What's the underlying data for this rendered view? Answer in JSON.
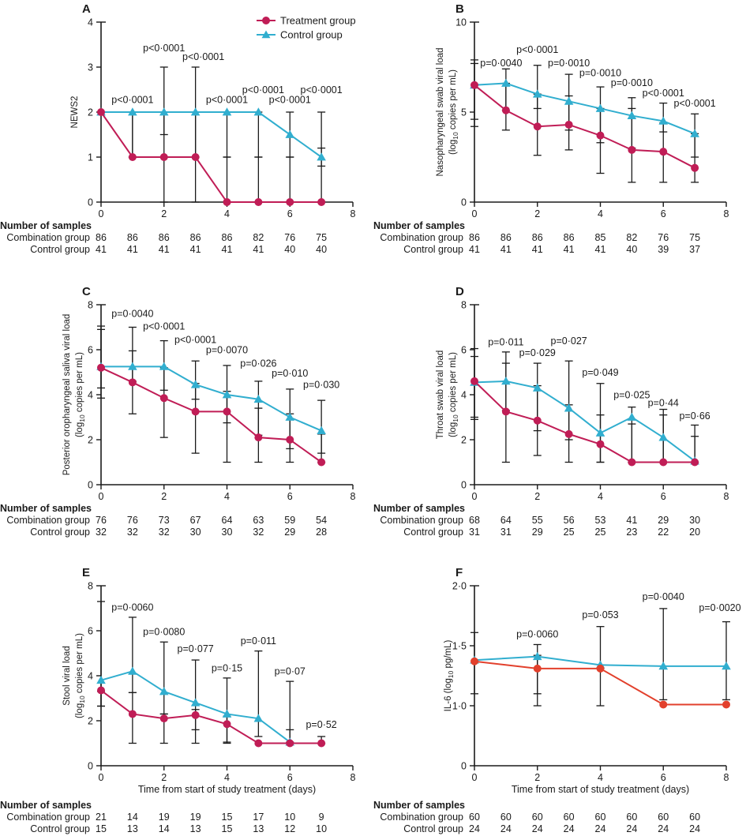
{
  "figure": {
    "legend": {
      "treatment_label": "Treatment group",
      "control_label": "Control group"
    },
    "x_axis_title": "Time from start of study treatment (days)",
    "samples_header": "Number of samples",
    "combination_row_label": "Combination group",
    "control_row_label": "Control group",
    "colors": {
      "treatment": "#C01D56",
      "control": "#31AECF",
      "treatment_f": "#E2402C",
      "error": "#1a1a1a",
      "text": "#1a1a1a"
    },
    "x_ticks": [
      "0",
      "2",
      "4",
      "6",
      "8"
    ],
    "x_tick_values": [
      0,
      2,
      4,
      6,
      8
    ],
    "x_max": 8
  },
  "chart_data": [
    {
      "type": "line",
      "panel_label": "A",
      "ylabel_lines": [
        "NEWS2"
      ],
      "ytick_labels": [
        "0",
        "1",
        "2",
        "3",
        "4"
      ],
      "ytick_values": [
        0,
        1,
        2,
        3,
        4
      ],
      "ylim": [
        0,
        4
      ],
      "x": [
        0,
        1,
        2,
        3,
        4,
        5,
        6,
        7
      ],
      "series": [
        {
          "name": "Treatment group",
          "values": [
            2,
            1,
            1,
            1,
            0,
            0,
            0,
            0
          ],
          "err": [
            null,
            [
              1,
              2
            ],
            [
              0,
              2
            ],
            [
              0,
              2
            ],
            [
              0,
              1
            ],
            [
              0,
              1
            ],
            [
              0,
              1
            ],
            [
              0,
              1.2
            ]
          ]
        },
        {
          "name": "Control group",
          "values": [
            2,
            2,
            2,
            2,
            2,
            2,
            1.5,
            1
          ],
          "err": [
            null,
            [
              1,
              2
            ],
            [
              1.5,
              3
            ],
            [
              1,
              3
            ],
            [
              1,
              2
            ],
            [
              1,
              2
            ],
            [
              1,
              2
            ],
            [
              0.8,
              2
            ]
          ]
        }
      ],
      "pvalues": [
        {
          "x": 1,
          "y": 2.2,
          "t": "p<0·0001"
        },
        {
          "x": 2,
          "y": 3.35,
          "t": "p<0·0001"
        },
        {
          "x": 3,
          "y": 3.16,
          "t": "p<0·0001",
          "dx": 10
        },
        {
          "x": 4,
          "y": 2.2,
          "t": "p<0·0001"
        },
        {
          "x": 5,
          "y": 2.42,
          "t": "p<0·0001",
          "dx": 6
        },
        {
          "x": 6,
          "y": 2.2,
          "t": "p<0·0001"
        },
        {
          "x": 7,
          "y": 2.42,
          "t": "p<0·0001"
        }
      ],
      "samples": {
        "combination": [
          "86",
          "86",
          "86",
          "86",
          "86",
          "82",
          "76",
          "75"
        ],
        "control": [
          "41",
          "41",
          "41",
          "41",
          "41",
          "41",
          "40",
          "40"
        ]
      },
      "legend": true,
      "show_x_title": false
    },
    {
      "type": "line",
      "panel_label": "B",
      "ylabel_lines": [
        "Nasopharyngeal swab viral load",
        "(log10 copies per mL)"
      ],
      "ytick_labels": [
        "0",
        "5",
        "10"
      ],
      "ytick_values": [
        0,
        5,
        10
      ],
      "ylim": [
        0,
        10
      ],
      "x": [
        0,
        1,
        2,
        3,
        4,
        5,
        6,
        7
      ],
      "series": [
        {
          "name": "Treatment group",
          "values": [
            6.5,
            5.1,
            4.2,
            4.3,
            3.7,
            2.9,
            2.8,
            1.9
          ],
          "err": [
            [
              4.2,
              7.7
            ],
            [
              4.0,
              6.6
            ],
            [
              2.6,
              6.0
            ],
            [
              2.9,
              5.9
            ],
            [
              1.6,
              5.2
            ],
            [
              1.1,
              5.2
            ],
            [
              1.1,
              4.4
            ],
            [
              1.1,
              3.8
            ]
          ]
        },
        {
          "name": "Control group",
          "values": [
            6.5,
            6.6,
            6.0,
            5.6,
            5.2,
            4.8,
            4.5,
            3.8
          ],
          "err": [
            [
              4.6,
              7.9
            ],
            [
              5.1,
              7.4
            ],
            [
              5.2,
              7.6
            ],
            [
              4.0,
              7.1
            ],
            [
              3.3,
              6.4
            ],
            [
              3.0,
              5.8
            ],
            [
              3.9,
              5.5
            ],
            [
              2.5,
              4.9
            ]
          ]
        }
      ],
      "pvalues": [
        {
          "x": 1,
          "y": 7.55,
          "t": "p=0·0040",
          "dx": -6
        },
        {
          "x": 2,
          "y": 8.3,
          "t": "p<0·0001"
        },
        {
          "x": 3,
          "y": 7.55,
          "t": "p=0·0010"
        },
        {
          "x": 4,
          "y": 7.0,
          "t": "p=0·0010"
        },
        {
          "x": 5,
          "y": 6.45,
          "t": "p=0·0010"
        },
        {
          "x": 6,
          "y": 5.88,
          "t": "p<0·0001"
        },
        {
          "x": 7,
          "y": 5.3,
          "t": "p<0·0001"
        }
      ],
      "samples": {
        "combination": [
          "86",
          "86",
          "86",
          "86",
          "85",
          "82",
          "76",
          "75"
        ],
        "control": [
          "41",
          "41",
          "41",
          "41",
          "41",
          "40",
          "39",
          "37"
        ]
      },
      "legend": false,
      "show_x_title": false
    },
    {
      "type": "line",
      "panel_label": "C",
      "ylabel_lines": [
        "Posterior oropharyngeal saliva viral load",
        "(log10 copies per mL)"
      ],
      "ytick_labels": [
        "0",
        "2",
        "4",
        "6",
        "8"
      ],
      "ytick_values": [
        0,
        2,
        4,
        6,
        8
      ],
      "ylim": [
        0,
        8
      ],
      "x": [
        0,
        1,
        2,
        3,
        4,
        5,
        6,
        7
      ],
      "series": [
        {
          "name": "Treatment group",
          "values": [
            5.2,
            4.55,
            3.85,
            3.25,
            3.25,
            2.1,
            2.0,
            1.0
          ],
          "err": [
            [
              3.85,
              6.9
            ],
            [
              3.15,
              5.95
            ],
            [
              2.1,
              5.2
            ],
            [
              1.4,
              4.5
            ],
            [
              1.0,
              4.15
            ],
            [
              1.0,
              3.4
            ],
            [
              1.0,
              3.15
            ],
            [
              1.0,
              2.25
            ]
          ]
        },
        {
          "name": "Control group",
          "values": [
            5.25,
            5.25,
            5.25,
            4.45,
            4.0,
            3.8,
            3.0,
            2.4
          ],
          "err": [
            [
              4.3,
              7.05
            ],
            [
              4.6,
              7.0
            ],
            [
              4.2,
              6.4
            ],
            [
              3.8,
              5.5
            ],
            [
              2.75,
              5.3
            ],
            [
              2.2,
              4.6
            ],
            [
              1.6,
              4.25
            ],
            [
              1.4,
              3.75
            ]
          ]
        }
      ],
      "pvalues": [
        {
          "x": 1,
          "y": 7.45,
          "t": "p=0·0040"
        },
        {
          "x": 2,
          "y": 6.9,
          "t": "p<0·0001"
        },
        {
          "x": 3,
          "y": 6.3,
          "t": "p<0·0001"
        },
        {
          "x": 4,
          "y": 5.85,
          "t": "p=0·0070"
        },
        {
          "x": 5,
          "y": 5.25,
          "t": "p=0·026"
        },
        {
          "x": 6,
          "y": 4.8,
          "t": "p=0·010"
        },
        {
          "x": 7,
          "y": 4.3,
          "t": "p=0·030"
        }
      ],
      "samples": {
        "combination": [
          "76",
          "76",
          "73",
          "67",
          "64",
          "63",
          "59",
          "54"
        ],
        "control": [
          "32",
          "32",
          "32",
          "30",
          "30",
          "32",
          "29",
          "28"
        ]
      },
      "legend": false,
      "show_x_title": false
    },
    {
      "type": "line",
      "panel_label": "D",
      "ylabel_lines": [
        "Throat swab viral load",
        "(log10 copies per mL)"
      ],
      "ytick_labels": [
        "0",
        "2",
        "4",
        "6",
        "8"
      ],
      "ytick_values": [
        0,
        2,
        4,
        6,
        8
      ],
      "ylim": [
        0,
        8
      ],
      "x": [
        0,
        1,
        2,
        3,
        4,
        5,
        6,
        7
      ],
      "series": [
        {
          "name": "Treatment group",
          "values": [
            4.6,
            3.25,
            2.85,
            2.25,
            1.8,
            1.0,
            1.0,
            1.0
          ],
          "err": [
            [
              3.0,
              5.7
            ],
            [
              1.0,
              5.4
            ],
            [
              1.3,
              4.4
            ],
            [
              1.0,
              3.55
            ],
            [
              1.0,
              3.1
            ],
            [
              1.0,
              2.7
            ],
            [
              1.0,
              3.1
            ],
            [
              1.0,
              2.15
            ]
          ]
        },
        {
          "name": "Control group",
          "values": [
            4.55,
            4.6,
            4.3,
            3.4,
            2.3,
            3.0,
            2.1,
            1.05
          ],
          "err": [
            [
              2.9,
              6.05
            ],
            [
              3.3,
              5.9
            ],
            [
              2.4,
              5.4
            ],
            [
              2.0,
              5.5
            ],
            [
              1.0,
              4.5
            ],
            [
              1.0,
              3.45
            ],
            [
              1.0,
              3.35
            ],
            [
              1.0,
              2.65
            ]
          ]
        }
      ],
      "pvalues": [
        {
          "x": 1,
          "y": 6.2,
          "t": "p=0·011"
        },
        {
          "x": 2,
          "y": 5.72,
          "t": "p=0·029"
        },
        {
          "x": 3,
          "y": 6.25,
          "t": "p=0·027"
        },
        {
          "x": 4,
          "y": 4.85,
          "t": "p=0·049"
        },
        {
          "x": 5,
          "y": 3.85,
          "t": "p=0·025"
        },
        {
          "x": 6,
          "y": 3.5,
          "t": "p=0·44"
        },
        {
          "x": 7,
          "y": 2.92,
          "t": "p=0·66"
        }
      ],
      "samples": {
        "combination": [
          "68",
          "64",
          "55",
          "56",
          "53",
          "41",
          "29",
          "30"
        ],
        "control": [
          "31",
          "31",
          "29",
          "25",
          "25",
          "23",
          "22",
          "20"
        ]
      },
      "legend": false,
      "show_x_title": false
    },
    {
      "type": "line",
      "panel_label": "E",
      "ylabel_lines": [
        "Stool viral load",
        "(log10 copies per mL)"
      ],
      "ytick_labels": [
        "0",
        "2",
        "4",
        "6",
        "8"
      ],
      "ytick_values": [
        0,
        2,
        4,
        6,
        8
      ],
      "ylim": [
        0,
        8
      ],
      "x": [
        0,
        1,
        2,
        3,
        4,
        5,
        6,
        7
      ],
      "series": [
        {
          "name": "Treatment group",
          "values": [
            3.35,
            2.3,
            2.1,
            2.25,
            1.85,
            1.0,
            1.0,
            1.0
          ],
          "err": [
            [
              2.65,
              3.3
            ],
            [
              1.0,
              3.25
            ],
            [
              1.0,
              2.3
            ],
            [
              1.0,
              2.5
            ],
            [
              1.0,
              2.2
            ],
            null,
            [
              1.0,
              1.6
            ],
            [
              1.0,
              1.3
            ]
          ]
        },
        {
          "name": "Control group",
          "values": [
            3.8,
            4.2,
            3.3,
            2.8,
            2.3,
            2.1,
            1.05,
            null
          ],
          "err": [
            [
              2.65,
              7.3
            ],
            [
              3.25,
              6.6
            ],
            [
              2.3,
              5.5
            ],
            [
              1.6,
              4.7
            ],
            [
              1.05,
              3.9
            ],
            [
              1.3,
              5.1
            ],
            [
              1.05,
              3.75
            ],
            null
          ]
        }
      ],
      "pvalues": [
        {
          "x": 1,
          "y": 6.9,
          "t": "p=0·0060"
        },
        {
          "x": 2,
          "y": 5.8,
          "t": "p=0·0080"
        },
        {
          "x": 3,
          "y": 5.05,
          "t": "p=0·077"
        },
        {
          "x": 4,
          "y": 4.2,
          "t": "p=0·15"
        },
        {
          "x": 5,
          "y": 5.4,
          "t": "p=0·011"
        },
        {
          "x": 6,
          "y": 4.05,
          "t": "p=0·07"
        },
        {
          "x": 7,
          "y": 1.68,
          "t": "p=0·52"
        }
      ],
      "samples": {
        "combination": [
          "21",
          "14",
          "19",
          "19",
          "15",
          "17",
          "10",
          "9"
        ],
        "control": [
          "15",
          "13",
          "14",
          "13",
          "15",
          "13",
          "12",
          "10"
        ]
      },
      "legend": false,
      "show_x_title": true
    },
    {
      "type": "line",
      "panel_label": "F",
      "ylabel_lines": [
        "IL-6 (log10 pg/mL)"
      ],
      "ytick_labels": [
        "0",
        "1·0",
        "1·5",
        "2·0"
      ],
      "ytick_values": [
        0,
        1.0,
        1.5,
        2.0
      ],
      "ylim": [
        0,
        2
      ],
      "x": [
        0,
        2,
        4,
        6,
        8
      ],
      "series": [
        {
          "name": "Treatment group",
          "values": [
            1.37,
            1.31,
            1.31,
            1.01,
            1.01
          ],
          "err": [
            null,
            [
              1.0,
              1.42
            ],
            null,
            null,
            null
          ],
          "color_key": "treatment_f"
        },
        {
          "name": "Control group",
          "values": [
            1.38,
            1.41,
            1.34,
            1.33,
            1.33
          ],
          "err": [
            [
              1.1,
              1.61
            ],
            [
              1.1,
              1.51
            ],
            [
              1.0,
              1.66
            ],
            [
              1.05,
              1.81
            ],
            [
              1.05,
              1.7
            ]
          ]
        }
      ],
      "pvalues": [
        {
          "x": 2,
          "y": 1.57,
          "t": "p=0·0060"
        },
        {
          "x": 4,
          "y": 1.73,
          "t": "p=0·053"
        },
        {
          "x": 6,
          "y": 1.88,
          "t": "p=0·0040"
        },
        {
          "x": 8,
          "y": 1.79,
          "t": "p=0·0020",
          "dx": -8
        }
      ],
      "samples": {
        "combination": [
          "60",
          "60",
          "60",
          "60",
          "60",
          "60",
          "60",
          "60"
        ],
        "control": [
          "24",
          "24",
          "24",
          "24",
          "24",
          "24",
          "24",
          "24"
        ]
      },
      "legend": false,
      "show_x_title": true
    }
  ]
}
